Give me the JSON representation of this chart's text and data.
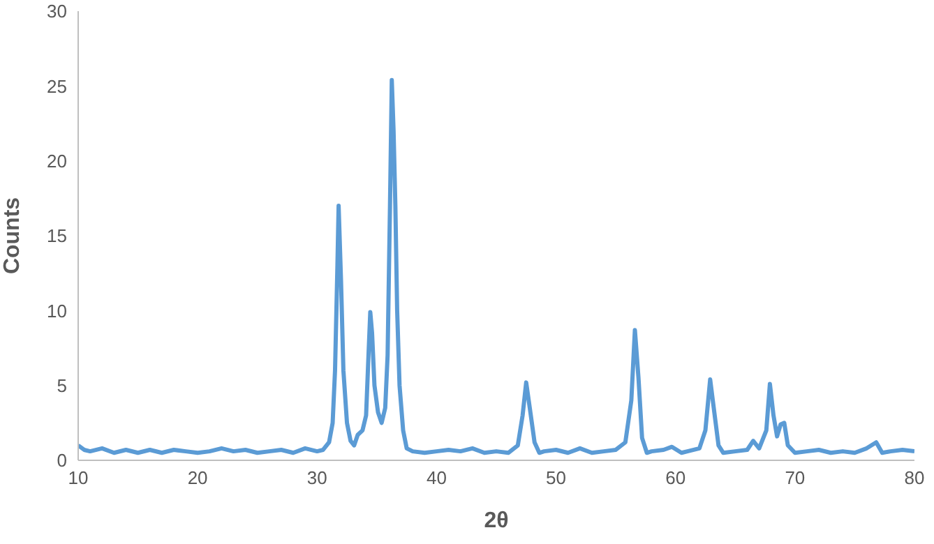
{
  "chart_data": {
    "type": "line",
    "xlabel": "2θ",
    "ylabel": "Counts",
    "xlim": [
      10,
      80
    ],
    "xticks": [
      10,
      20,
      30,
      40,
      50,
      60,
      70,
      80
    ],
    "ylim": [
      0,
      30
    ],
    "yticks": [
      0,
      5,
      10,
      15,
      20,
      25,
      30
    ],
    "grid": false,
    "legend": false,
    "marker": "none",
    "line_style": "solid",
    "series": [
      {
        "color": "#5b9bd5",
        "x": [
          10,
          10.5,
          11,
          12,
          13,
          14,
          15,
          16,
          17,
          18,
          19,
          20,
          21,
          22,
          23,
          24,
          25,
          26,
          27,
          28,
          29,
          30,
          30.5,
          31,
          31.3,
          31.5,
          31.7,
          31.8,
          32,
          32.2,
          32.5,
          32.8,
          33.1,
          33.4,
          33.8,
          34.1,
          34.3,
          34.45,
          34.6,
          34.8,
          35.1,
          35.4,
          35.7,
          35.9,
          36.1,
          36.25,
          36.4,
          36.55,
          36.7,
          36.9,
          37.2,
          37.5,
          38,
          39,
          40,
          41,
          42,
          43,
          44,
          45,
          46,
          46.8,
          47.2,
          47.5,
          47.8,
          48.2,
          48.6,
          49,
          50,
          51,
          52,
          53,
          54,
          55,
          55.8,
          56.3,
          56.6,
          56.9,
          57.2,
          57.6,
          58,
          59,
          59.7,
          60.5,
          61,
          62,
          62.5,
          62.9,
          63.2,
          63.6,
          64,
          65,
          66,
          66.5,
          67,
          67.6,
          67.9,
          68.2,
          68.5,
          68.8,
          69.1,
          69.4,
          70,
          71,
          72,
          73,
          74,
          75,
          76,
          76.8,
          77.3,
          78,
          79,
          80
        ],
        "values": [
          1.0,
          0.7,
          0.6,
          0.8,
          0.5,
          0.7,
          0.5,
          0.7,
          0.5,
          0.7,
          0.6,
          0.5,
          0.6,
          0.8,
          0.6,
          0.7,
          0.5,
          0.6,
          0.7,
          0.5,
          0.8,
          0.6,
          0.7,
          1.2,
          2.5,
          6,
          13,
          17,
          12,
          6,
          2.5,
          1.3,
          1.0,
          1.7,
          2.0,
          3,
          7,
          9.9,
          8.5,
          5,
          3.2,
          2.5,
          3.5,
          7,
          17,
          25.4,
          22,
          17,
          10,
          5,
          2,
          0.8,
          0.6,
          0.5,
          0.6,
          0.7,
          0.6,
          0.8,
          0.5,
          0.6,
          0.5,
          1,
          3,
          5.2,
          3.5,
          1.2,
          0.5,
          0.6,
          0.7,
          0.5,
          0.8,
          0.5,
          0.6,
          0.7,
          1.2,
          4,
          8.7,
          5.5,
          1.5,
          0.5,
          0.6,
          0.7,
          0.9,
          0.5,
          0.6,
          0.8,
          2,
          5.4,
          3.5,
          1,
          0.5,
          0.6,
          0.7,
          1.3,
          0.8,
          2,
          5.1,
          3,
          1.6,
          2.4,
          2.5,
          1,
          0.5,
          0.6,
          0.7,
          0.5,
          0.6,
          0.5,
          0.8,
          1.2,
          0.5,
          0.6,
          0.7,
          0.6
        ]
      }
    ]
  }
}
